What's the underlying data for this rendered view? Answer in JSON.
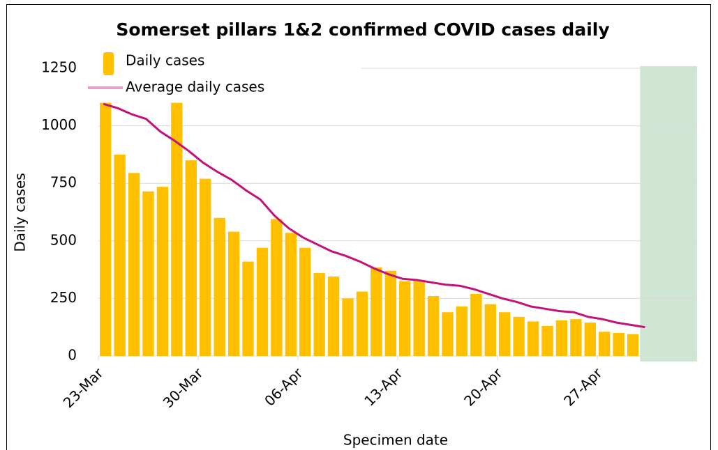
{
  "chart_data": {
    "type": "bar",
    "title": "Somerset pillars 1&2 confirmed COVID cases daily",
    "x_label": "Specimen date",
    "y_label": "Daily cases",
    "categories": [
      "23-Mar",
      null,
      null,
      null,
      null,
      null,
      null,
      "30-Mar",
      null,
      null,
      null,
      null,
      null,
      null,
      "06-Apr",
      null,
      null,
      null,
      null,
      null,
      null,
      "13-Apr",
      null,
      null,
      null,
      null,
      null,
      null,
      "20-Apr",
      null,
      null,
      null,
      null,
      null,
      null,
      "27-Apr",
      null,
      null,
      null,
      null,
      null,
      null
    ],
    "series": [
      {
        "name": "Daily cases",
        "type": "bar",
        "color": "#ffc000",
        "values": [
          1100,
          875,
          795,
          715,
          735,
          1100,
          850,
          770,
          600,
          540,
          410,
          470,
          595,
          535,
          470,
          360,
          345,
          250,
          280,
          385,
          370,
          325,
          325,
          260,
          190,
          215,
          270,
          225,
          190,
          170,
          150,
          130,
          155,
          160,
          145,
          105,
          100,
          95,
          null,
          null,
          null,
          null
        ]
      },
      {
        "name": "Average daily cases",
        "type": "line",
        "color": "#c2127a",
        "values": [
          1095,
          1077,
          1050,
          1030,
          975,
          935,
          890,
          840,
          800,
          765,
          720,
          680,
          610,
          555,
          515,
          485,
          455,
          435,
          410,
          380,
          355,
          335,
          330,
          320,
          310,
          305,
          290,
          270,
          250,
          235,
          215,
          205,
          195,
          190,
          170,
          160,
          145,
          135,
          125,
          null,
          null,
          null
        ]
      }
    ],
    "shade_color": "#cfe6d4",
    "ylim": [
      0,
      1250
    ],
    "yticks": [
      0,
      250,
      500,
      750,
      1000,
      1250
    ],
    "grid": true,
    "legend": "top-left"
  }
}
